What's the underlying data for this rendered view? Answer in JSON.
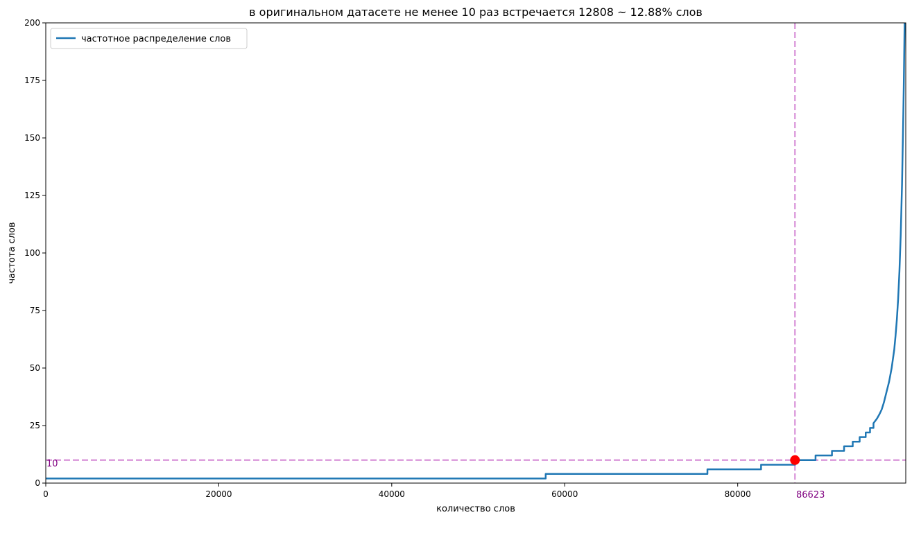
{
  "chart_data": {
    "type": "line",
    "title": "в оригинальном датасете не менее 10 раз встречается 12808 ~ 12.88% слов",
    "xlabel": "количество слов",
    "ylabel": "частота слов",
    "xlim": [
      0,
      99431
    ],
    "ylim": [
      0,
      200
    ],
    "x_ticks": [
      0,
      20000,
      40000,
      60000,
      80000
    ],
    "y_ticks": [
      0,
      25,
      50,
      75,
      100,
      125,
      150,
      175,
      200
    ],
    "grid": false,
    "legend_position": "top-left",
    "series": [
      {
        "name": "частотное распределение слов",
        "color": "#1f77b4",
        "x": [
          0,
          57800,
          57800,
          76500,
          76500,
          82700,
          82700,
          86623,
          86623,
          89000,
          89000,
          90900,
          90900,
          92300,
          92300,
          93300,
          93300,
          94100,
          94100,
          94800,
          94800,
          95300,
          95300,
          95700,
          95700,
          96100,
          96400,
          96650,
          96900,
          97100,
          97300,
          97500,
          97650,
          97800,
          97950,
          98100,
          98250,
          98400,
          98550,
          98700,
          98850,
          99000,
          99100,
          99200,
          99300,
          99431
        ],
        "y": [
          2,
          2,
          4,
          4,
          6,
          6,
          8,
          8,
          10,
          10,
          12,
          12,
          14,
          14,
          16,
          16,
          18,
          18,
          20,
          20,
          22,
          22,
          24,
          24,
          26,
          28,
          30,
          32,
          35,
          38,
          41,
          44,
          47,
          50,
          54,
          58,
          64,
          71,
          80,
          92,
          108,
          130,
          150,
          172,
          200,
          240
        ]
      }
    ],
    "reference_lines": [
      {
        "orientation": "horizontal",
        "value": 10,
        "color": "#dda0dd",
        "style": "dashed"
      },
      {
        "orientation": "vertical",
        "value": 86623,
        "color": "#dda0dd",
        "style": "dashed"
      }
    ],
    "marker": {
      "x": 86623,
      "y": 10,
      "color": "#ff0000"
    },
    "annotations": [
      {
        "id": "h",
        "text": "10",
        "color": "#800080"
      },
      {
        "id": "v",
        "text": "86623",
        "color": "#800080"
      }
    ]
  }
}
